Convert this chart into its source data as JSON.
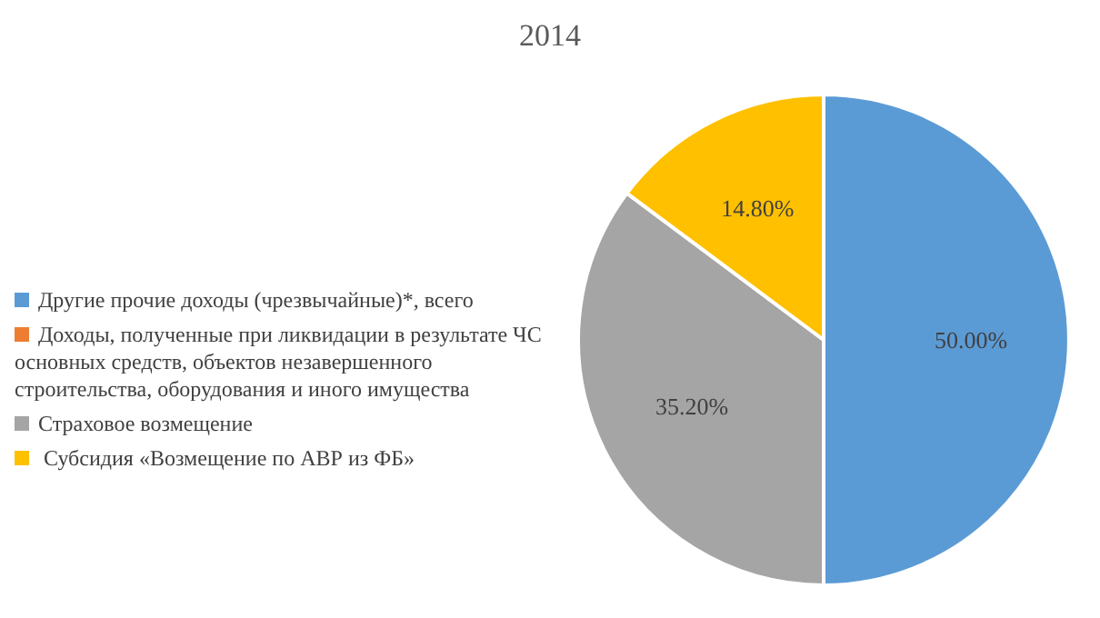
{
  "chart_data": {
    "type": "pie",
    "title": "2014",
    "categories": [
      "Другие прочие  доходы (чрезвычайные)*, всего",
      "Доходы, полученные при ликвидации в результате ЧС основных средств, объектов незавершенного строительства, оборудования и иного имущества",
      "Страховое возмещение",
      " Субсидия «Возмещение по АВР из ФБ»"
    ],
    "values": [
      50,
      0,
      35.2,
      14.8
    ],
    "colors": [
      "#5b9bd5",
      "#ed7d31",
      "#a5a5a5",
      "#ffc000"
    ],
    "value_labels": [
      "50.00%",
      null,
      "35.20%",
      "14.80%"
    ],
    "legend": "left"
  }
}
